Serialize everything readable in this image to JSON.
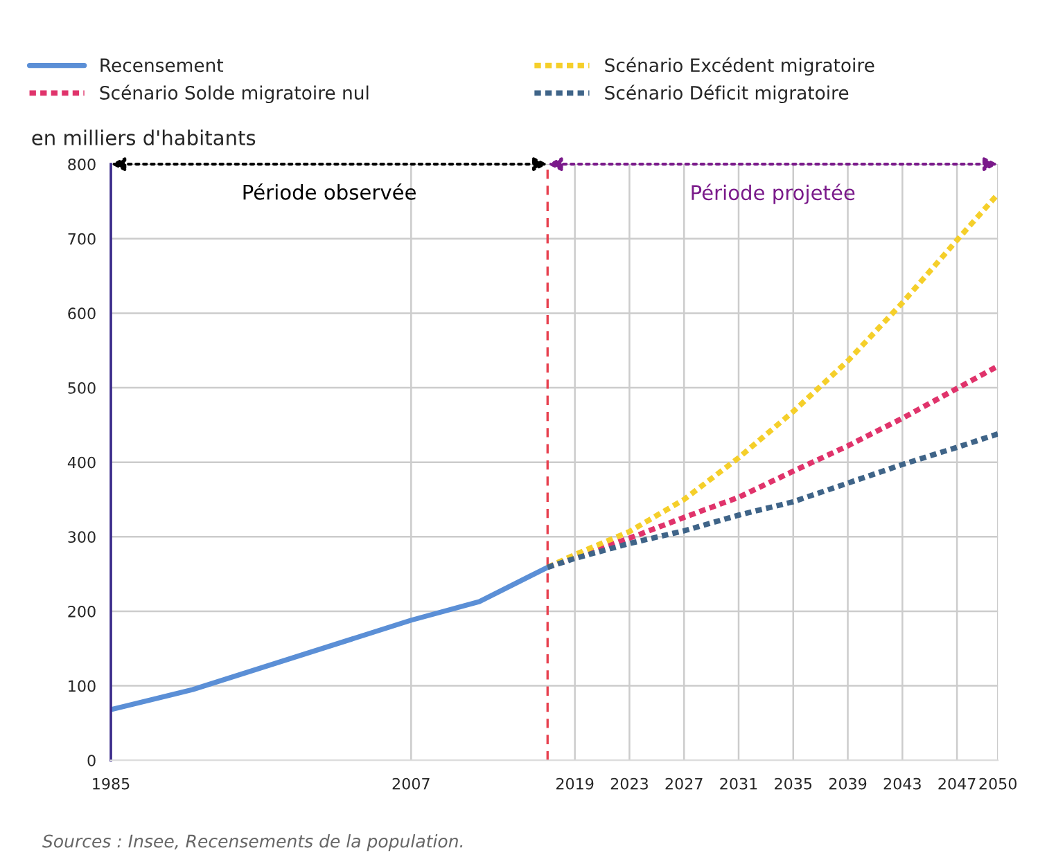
{
  "chart_data": {
    "type": "line",
    "ylabel": "en milliers d'habitants",
    "xlim": [
      1985,
      2050
    ],
    "ylim": [
      0,
      800
    ],
    "xticks": [
      1985,
      2007,
      2019,
      2023,
      2027,
      2031,
      2035,
      2039,
      2043,
      2047,
      2050
    ],
    "yticks": [
      0,
      100,
      200,
      300,
      400,
      500,
      600,
      700,
      800
    ],
    "grid": true,
    "legend": "top",
    "marker": "none",
    "series": [
      {
        "name": "Recensement",
        "color": "#5b8fd6",
        "line_style": "solid",
        "x": [
          1985,
          1991,
          2007,
          2012,
          2017
        ],
        "values": [
          68,
          95,
          188,
          213,
          259
        ]
      },
      {
        "name": "Scénario Solde migratoire nul",
        "color": "#e0336b",
        "line_style": "dotted",
        "x": [
          2017,
          2019,
          2023,
          2027,
          2031,
          2035,
          2039,
          2043,
          2047,
          2050
        ],
        "values": [
          259,
          273,
          298,
          326,
          353,
          388,
          422,
          459,
          499,
          529
        ]
      },
      {
        "name": "Scénario Excédent migratoire",
        "color": "#f5cf2a",
        "line_style": "dotted",
        "x": [
          2017,
          2019,
          2023,
          2027,
          2031,
          2035,
          2039,
          2043,
          2047,
          2050
        ],
        "values": [
          259,
          276,
          307,
          350,
          406,
          468,
          536,
          614,
          698,
          760
        ]
      },
      {
        "name": "Scénario Déficit migratoire",
        "color": "#3f6488",
        "line_style": "dotted",
        "x": [
          2017,
          2019,
          2023,
          2027,
          2031,
          2035,
          2039,
          2043,
          2047,
          2050
        ],
        "values": [
          259,
          271,
          291,
          308,
          329,
          347,
          372,
          397,
          420,
          438
        ]
      }
    ],
    "ref_lines": [
      {
        "axis": "x",
        "value": 2017,
        "color": "#e8414f",
        "line_style": "dashed"
      }
    ],
    "annotations": [
      "Période observée",
      "Période projetée",
      "Sources : Insee, Recensements de la population."
    ]
  }
}
